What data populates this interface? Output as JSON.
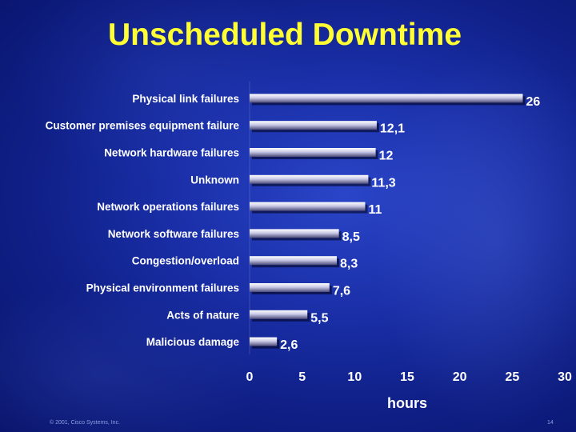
{
  "title": "Unscheduled Downtime",
  "footer": {
    "copyright": "© 2001, Cisco Systems, Inc.",
    "page_number": "14"
  },
  "colors": {
    "title": "#ffff33",
    "text": "#ffffff",
    "bar": "#c8c8e6"
  },
  "chart_data": {
    "type": "bar",
    "orientation": "horizontal",
    "categories": [
      "Physical link failures",
      "Customer premises equipment failure",
      "Network hardware failures",
      "Unknown",
      "Network operations failures",
      "Network software failures",
      "Congestion/overload",
      "Physical environment failures",
      "Acts of nature",
      "Malicious damage"
    ],
    "values": [
      26,
      12.1,
      12,
      11.3,
      11,
      8.5,
      8.3,
      7.6,
      5.5,
      2.6
    ],
    "value_labels": [
      "26",
      "12,1",
      "12",
      "11,3",
      "11",
      "8,5",
      "8,3",
      "7,6",
      "5,5",
      "2,6"
    ],
    "xlabel": "hours",
    "xlim": [
      0,
      30
    ],
    "x_ticks": [
      "0",
      "5",
      "10",
      "15",
      "20",
      "25",
      "30"
    ],
    "grid": false,
    "legend": "none"
  }
}
